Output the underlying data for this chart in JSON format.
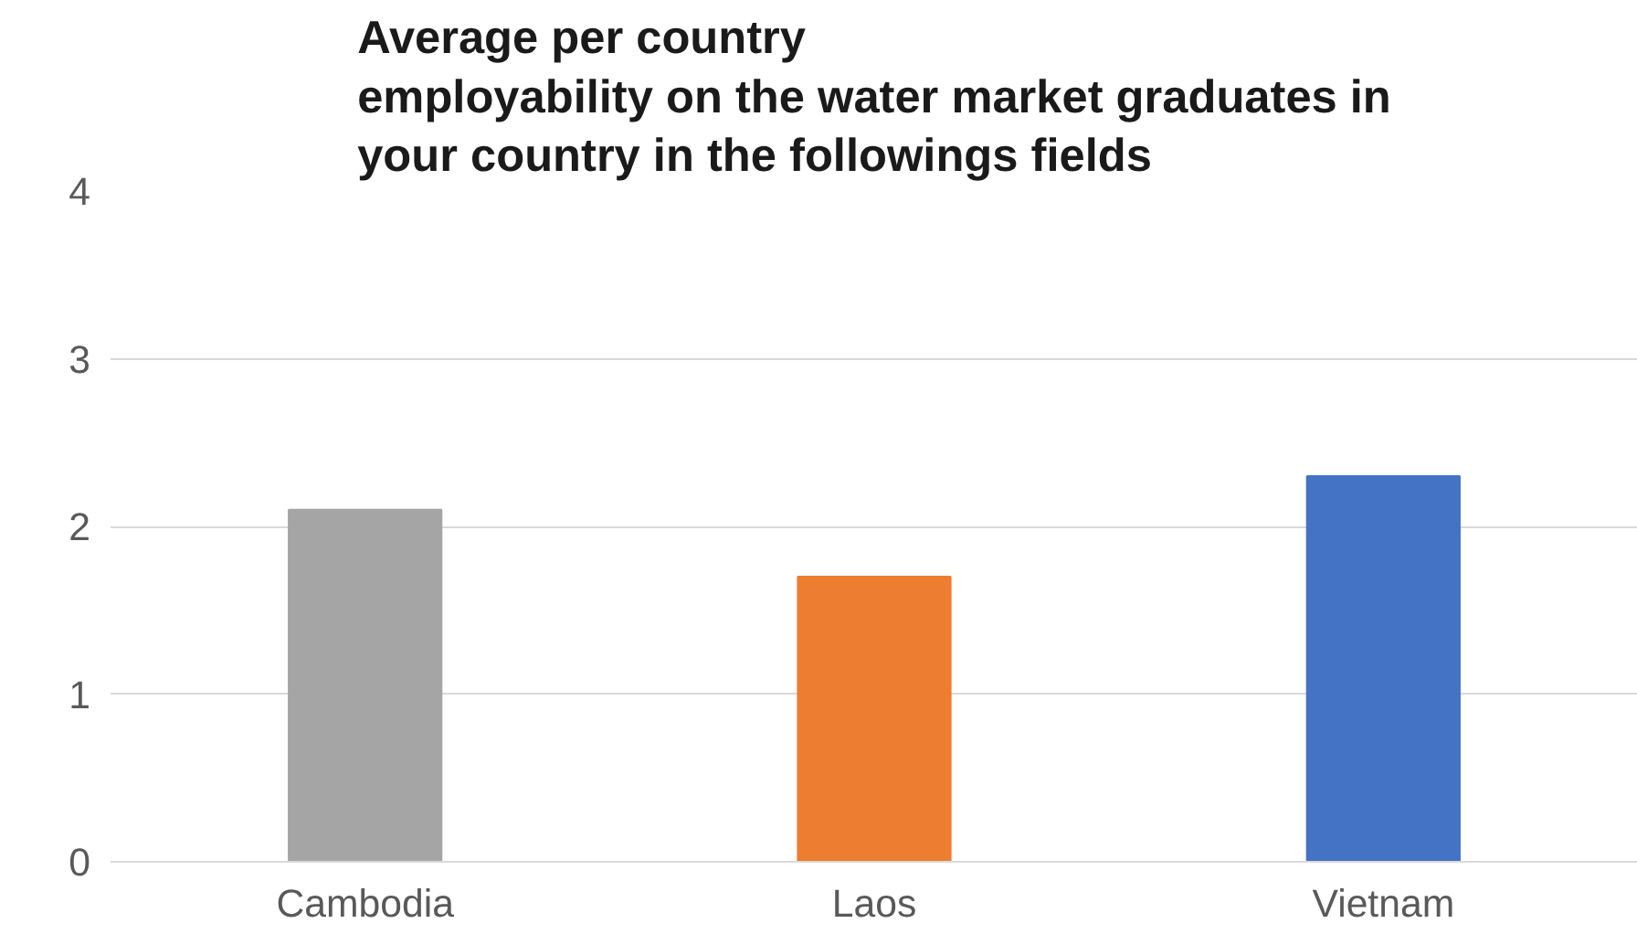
{
  "chart_data": {
    "type": "bar",
    "title": "Average per country\nemployability on the water market graduates in\nyour country in the followings fields",
    "categories": [
      "Cambodia",
      "Laos",
      "Vietnam"
    ],
    "values": [
      2.1,
      1.7,
      2.3
    ],
    "colors": [
      "#a5a5a5",
      "#ed7d31",
      "#4472c4"
    ],
    "ylim": [
      0,
      4
    ],
    "yticks": [
      0,
      1,
      2,
      3,
      4
    ],
    "grid": "y"
  }
}
